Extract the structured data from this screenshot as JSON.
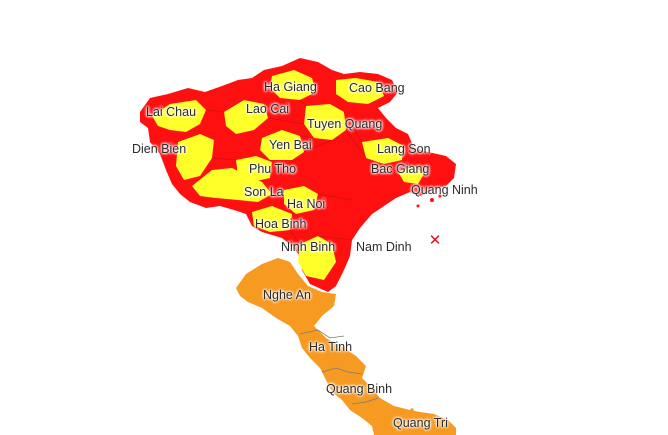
{
  "map": {
    "colors": {
      "red_zone": "#ff1010",
      "yellow_zone": "#ffff2a",
      "orange_zone": "#f79a22",
      "border": "#7a7a7a",
      "marker": "#e3101a"
    },
    "labels": {
      "ha_giang": "Ha Giang",
      "cao_bang": "Cao Bang",
      "lai_chau": "Lai Chau",
      "lao_cai": "Lao Cai",
      "tuyen_quang": "Tuyen Quang",
      "dien_bien": "Dien Bien",
      "yen_bai": "Yen Bai",
      "lang_son": "Lang Son",
      "phu_tho": "Phu Tho",
      "bac_giang": "Bac Giang",
      "son_la": "Son La",
      "quang_ninh": "Quang Ninh",
      "ha_noi": "Ha Noi",
      "hoa_binh": "Hoa Binh",
      "ninh_binh": "Ninh Binh",
      "nam_dinh": "Nam Dinh",
      "nghe_an": "Nghe An",
      "ha_tinh": "Ha Tinh",
      "quang_binh": "Quang Binh",
      "quang_tri": "Quang Tri"
    },
    "marker_symbol": "✕"
  }
}
